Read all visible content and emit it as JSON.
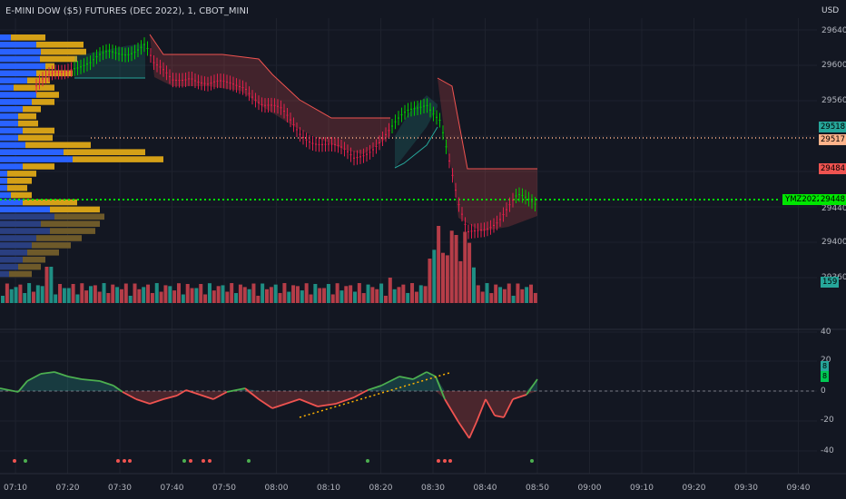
{
  "header": {
    "title": "E-MINI DOW ($5) FUTURES (DEC 2022), 1, CBOT_MINI"
  },
  "price_axis": {
    "currency": "USD",
    "ticks": [
      "29640",
      "29600",
      "29560",
      "29520",
      "29480",
      "29440",
      "29400",
      "29360"
    ],
    "labels": {
      "green_level": "29518",
      "orange_level": "29517",
      "red_level": "29484",
      "current_symbol": "YMZ2022",
      "current_price": "29448",
      "volume": "159"
    }
  },
  "oscillator_axis": {
    "ticks": [
      "40",
      "20",
      "0",
      "-20",
      "-40"
    ],
    "value_top": "8",
    "value_bottom": "8"
  },
  "time_axis": {
    "ticks": [
      "07:10",
      "07:20",
      "07:30",
      "07:40",
      "07:50",
      "08:00",
      "08:10",
      "08:20",
      "08:30",
      "08:40",
      "08:50",
      "09:00",
      "09:10",
      "09:20",
      "09:30",
      "09:40"
    ]
  },
  "colors": {
    "background": "#131722",
    "up": "#26a69a",
    "down": "#ef5350",
    "bull_candle": "#00c800",
    "bear_candle": "#e0204b",
    "profile_blue": "#2962ff",
    "profile_gold": "#d4a017",
    "level_orange": "#ffb38a",
    "level_green": "#00e600"
  }
}
